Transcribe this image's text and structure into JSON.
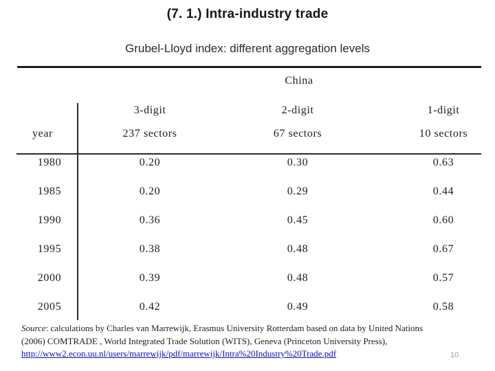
{
  "slide": {
    "title": "(7. 1.) Intra-industry trade",
    "subtitle": "Grubel-Lloyd index: different aggregation levels",
    "page_number": "10"
  },
  "table": {
    "region_header": "China",
    "year_column_label": "year",
    "columns": [
      {
        "digit": "3-digit",
        "sectors": "237 sectors"
      },
      {
        "digit": "2-digit",
        "sectors": "67 sectors"
      },
      {
        "digit": "1-digit",
        "sectors": "10 sectors"
      }
    ],
    "rows": [
      {
        "year": "1980",
        "v1": "0.20",
        "v2": "0.30",
        "v3": "0.63"
      },
      {
        "year": "1985",
        "v1": "0.20",
        "v2": "0.29",
        "v3": "0.44"
      },
      {
        "year": "1990",
        "v1": "0.36",
        "v2": "0.45",
        "v3": "0.60"
      },
      {
        "year": "1995",
        "v1": "0.38",
        "v2": "0.48",
        "v3": "0.67"
      },
      {
        "year": "2000",
        "v1": "0.39",
        "v2": "0.48",
        "v3": "0.57"
      },
      {
        "year": "2005",
        "v1": "0.42",
        "v2": "0.49",
        "v3": "0.58"
      }
    ]
  },
  "source": {
    "label": "Source",
    "line1_rest": ": calculations by Charles van Marrewijk, Erasmus University Rotterdam based on data by United Nations",
    "line2": "(2006) COMTRADE , World Integrated Trade Solution (WITS), Geneva (Princeton University Press),",
    "link": "http://www2.econ.uu.nl/users/marrewijk/pdf/marrewijk/Intra%20Industry%20Trade.pdf"
  }
}
